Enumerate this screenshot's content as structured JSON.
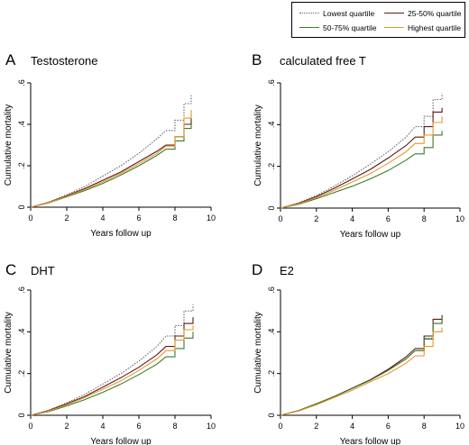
{
  "legend": {
    "items": [
      {
        "label": "Lowest quartile",
        "color": "#666666",
        "dash": "dotted"
      },
      {
        "label": "25-50% quartile",
        "color": "#5b1a1a",
        "dash": "solid"
      },
      {
        "label": "50-75% quartile",
        "color": "#3d7a2a",
        "dash": "solid"
      },
      {
        "label": "Highest quartile",
        "color": "#e8962e",
        "dash": "solid"
      }
    ]
  },
  "chart_data": [
    {
      "panel_letter": "A",
      "title": "Testosterone",
      "type": "line",
      "xlabel": "Years follow up",
      "ylabel": "Cumulative mortality",
      "xlim": [
        0,
        10
      ],
      "ylim": [
        0,
        0.6
      ],
      "xticks": [
        0,
        2,
        4,
        6,
        8,
        10
      ],
      "yticks": [
        0,
        0.2,
        0.4,
        0.6
      ],
      "x": [
        0,
        1,
        2,
        3,
        4,
        5,
        6,
        7,
        7.5,
        8,
        8.5,
        8.9
      ],
      "series": [
        {
          "name": "Lowest quartile",
          "values": [
            0,
            0.025,
            0.06,
            0.1,
            0.15,
            0.2,
            0.26,
            0.33,
            0.37,
            0.42,
            0.5,
            0.54
          ]
        },
        {
          "name": "25-50% quartile",
          "values": [
            0,
            0.022,
            0.055,
            0.09,
            0.13,
            0.17,
            0.22,
            0.27,
            0.3,
            0.34,
            0.4,
            0.43
          ]
        },
        {
          "name": "50-75% quartile",
          "values": [
            0,
            0.02,
            0.05,
            0.08,
            0.115,
            0.155,
            0.2,
            0.25,
            0.28,
            0.32,
            0.38,
            0.4
          ]
        },
        {
          "name": "Highest quartile",
          "values": [
            0,
            0.021,
            0.052,
            0.085,
            0.122,
            0.163,
            0.21,
            0.26,
            0.295,
            0.34,
            0.43,
            0.47
          ]
        }
      ]
    },
    {
      "panel_letter": "B",
      "title": "calculated free T",
      "type": "line",
      "xlabel": "Years follow up",
      "ylabel": "Cumulative mortality",
      "xlim": [
        0,
        10
      ],
      "ylim": [
        0,
        0.6
      ],
      "xticks": [
        0,
        2,
        4,
        6,
        8,
        10
      ],
      "yticks": [
        0,
        0.2,
        0.4,
        0.6
      ],
      "x": [
        0,
        1,
        2,
        3,
        4,
        5,
        6,
        7,
        7.5,
        8,
        8.5,
        9
      ],
      "series": [
        {
          "name": "Lowest quartile",
          "values": [
            0,
            0.025,
            0.06,
            0.105,
            0.155,
            0.21,
            0.27,
            0.34,
            0.39,
            0.44,
            0.52,
            0.55
          ]
        },
        {
          "name": "25-50% quartile",
          "values": [
            0,
            0.022,
            0.055,
            0.095,
            0.14,
            0.185,
            0.24,
            0.3,
            0.34,
            0.39,
            0.46,
            0.48
          ]
        },
        {
          "name": "50-75% quartile",
          "values": [
            0,
            0.018,
            0.045,
            0.075,
            0.105,
            0.14,
            0.18,
            0.23,
            0.26,
            0.29,
            0.35,
            0.37
          ]
        },
        {
          "name": "Highest quartile",
          "values": [
            0,
            0.02,
            0.05,
            0.085,
            0.125,
            0.165,
            0.215,
            0.27,
            0.31,
            0.35,
            0.41,
            0.44
          ]
        }
      ]
    },
    {
      "panel_letter": "C",
      "title": "DHT",
      "type": "line",
      "xlabel": "Years follow up",
      "ylabel": "Cumulative mortality",
      "xlim": [
        0,
        10
      ],
      "ylim": [
        0,
        0.6
      ],
      "xticks": [
        0,
        2,
        4,
        6,
        8,
        10
      ],
      "yticks": [
        0,
        0.2,
        0.4,
        0.6
      ],
      "x": [
        0,
        1,
        2,
        3,
        4,
        5,
        6,
        7,
        7.5,
        8,
        8.5,
        9
      ],
      "series": [
        {
          "name": "Lowest quartile",
          "values": [
            0,
            0.025,
            0.06,
            0.1,
            0.15,
            0.2,
            0.26,
            0.33,
            0.38,
            0.43,
            0.5,
            0.53
          ]
        },
        {
          "name": "25-50% quartile",
          "values": [
            0,
            0.022,
            0.055,
            0.09,
            0.135,
            0.18,
            0.23,
            0.29,
            0.33,
            0.38,
            0.44,
            0.47
          ]
        },
        {
          "name": "50-75% quartile",
          "values": [
            0,
            0.018,
            0.045,
            0.075,
            0.11,
            0.15,
            0.195,
            0.245,
            0.28,
            0.32,
            0.37,
            0.4
          ]
        },
        {
          "name": "Highest quartile",
          "values": [
            0,
            0.02,
            0.05,
            0.085,
            0.125,
            0.165,
            0.215,
            0.27,
            0.31,
            0.36,
            0.41,
            0.43
          ]
        }
      ]
    },
    {
      "panel_letter": "D",
      "title": "E2",
      "type": "line",
      "xlabel": "Years follow up",
      "ylabel": "Cumulative mortality",
      "xlim": [
        0,
        10
      ],
      "ylim": [
        0,
        0.6
      ],
      "xticks": [
        0,
        2,
        4,
        6,
        8,
        10
      ],
      "yticks": [
        0,
        0.2,
        0.4,
        0.6
      ],
      "x": [
        0,
        1,
        2,
        3,
        4,
        5,
        6,
        7,
        7.5,
        8,
        8.5,
        9
      ],
      "series": [
        {
          "name": "Lowest quartile",
          "values": [
            0,
            0.022,
            0.055,
            0.09,
            0.13,
            0.17,
            0.22,
            0.27,
            0.31,
            0.37,
            0.44,
            0.46
          ]
        },
        {
          "name": "25-50% quartile",
          "values": [
            0,
            0.022,
            0.055,
            0.09,
            0.13,
            0.17,
            0.22,
            0.28,
            0.32,
            0.38,
            0.46,
            0.48
          ]
        },
        {
          "name": "50-75% quartile",
          "values": [
            0,
            0.022,
            0.055,
            0.09,
            0.128,
            0.168,
            0.215,
            0.27,
            0.31,
            0.365,
            0.44,
            0.47
          ]
        },
        {
          "name": "Highest quartile",
          "values": [
            0,
            0.02,
            0.05,
            0.085,
            0.12,
            0.16,
            0.2,
            0.25,
            0.285,
            0.33,
            0.4,
            0.42
          ]
        }
      ]
    }
  ]
}
